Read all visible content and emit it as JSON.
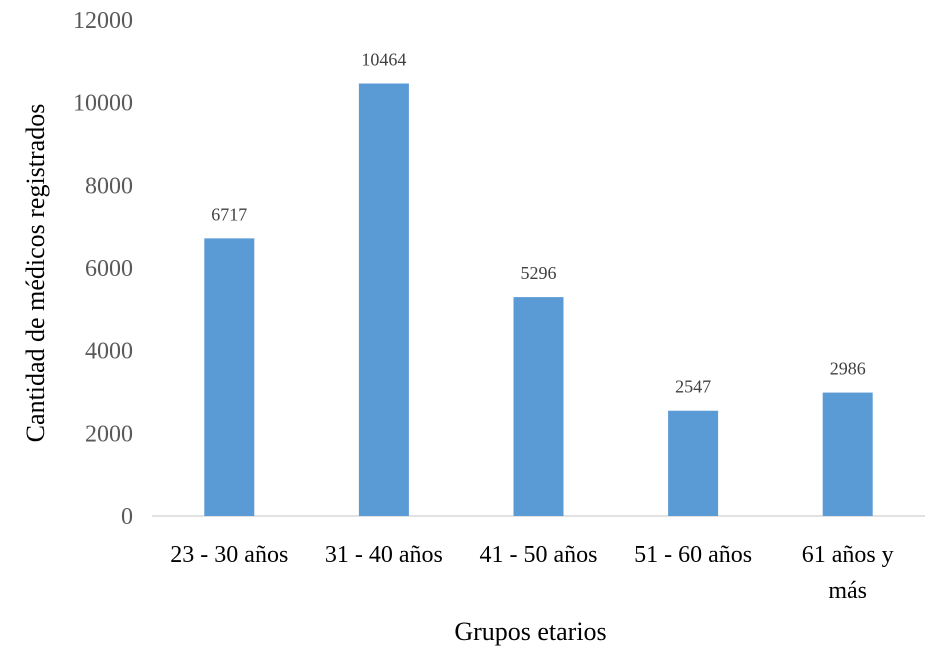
{
  "chart_data": {
    "type": "bar",
    "categories": [
      [
        "23 - 30 años"
      ],
      [
        "31 - 40 años"
      ],
      [
        "41 - 50 años"
      ],
      [
        "51 - 60 años"
      ],
      [
        "61 años y",
        "más"
      ]
    ],
    "values": [
      6717,
      10464,
      5296,
      2547,
      2986
    ],
    "xlabel": "Grupos etarios",
    "ylabel": "Cantidad de médicos registrados",
    "ylim": [
      0,
      12000
    ],
    "yticks": [
      0,
      2000,
      4000,
      6000,
      8000,
      10000,
      12000
    ],
    "bar_color": "#5b9bd5",
    "grid": false,
    "legend": "none"
  }
}
